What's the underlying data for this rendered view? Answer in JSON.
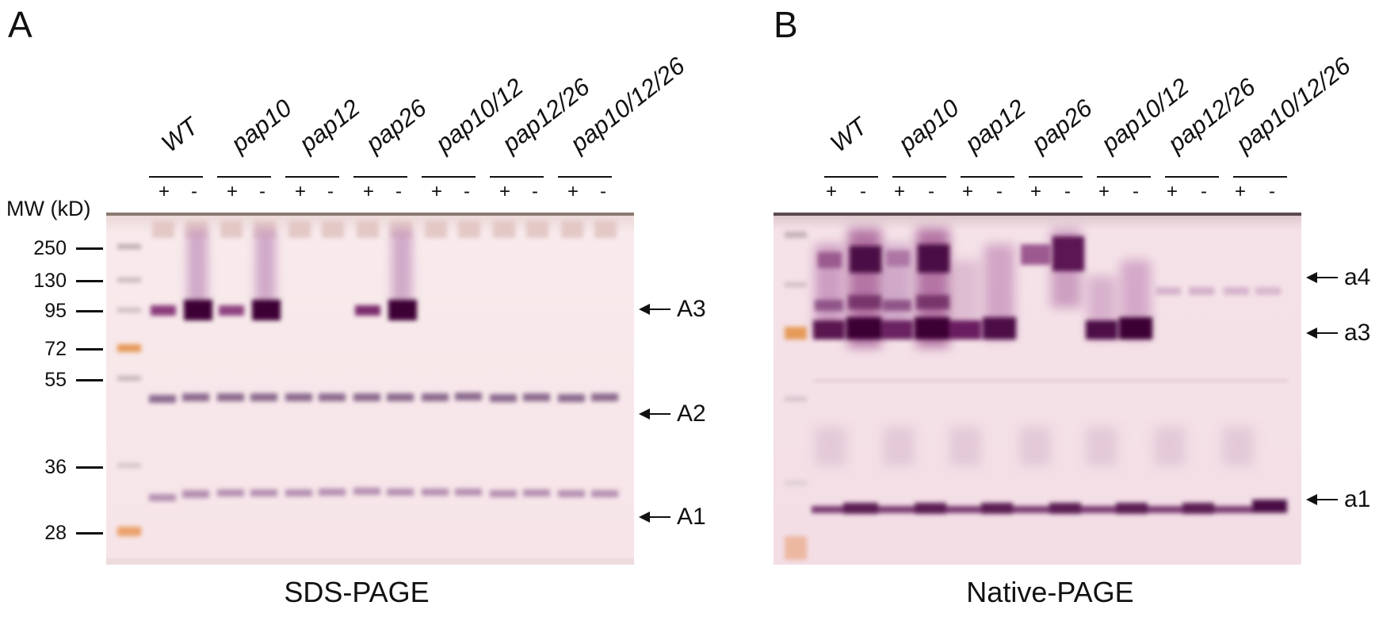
{
  "panels": [
    {
      "letter": "A",
      "caption": "SDS-PAGE",
      "mw_title": "MW (kD)",
      "mw_markers": [
        "250",
        "130",
        "95",
        "72",
        "55",
        "36",
        "28"
      ],
      "genotypes": [
        "WT",
        "pap10",
        "pap12",
        "pap26",
        "pap10/12",
        "pap12/26",
        "pap10/12/26"
      ],
      "lane_signs": [
        "+",
        "-"
      ],
      "band_labels": [
        "A3",
        "A2",
        "A1"
      ]
    },
    {
      "letter": "B",
      "caption": "Native-PAGE",
      "genotypes": [
        "WT",
        "pap10",
        "pap12",
        "pap26",
        "pap10/12",
        "pap12/26",
        "pap10/12/26"
      ],
      "lane_signs": [
        "+",
        "-"
      ],
      "band_labels": [
        "a4",
        "a3",
        "a1"
      ]
    }
  ],
  "colors": {
    "gel_background": "#f7e6ea",
    "band_stain": "#4a0a3c",
    "ladder_orange": "#e59a58",
    "ladder_grey": "#b8aab0"
  }
}
